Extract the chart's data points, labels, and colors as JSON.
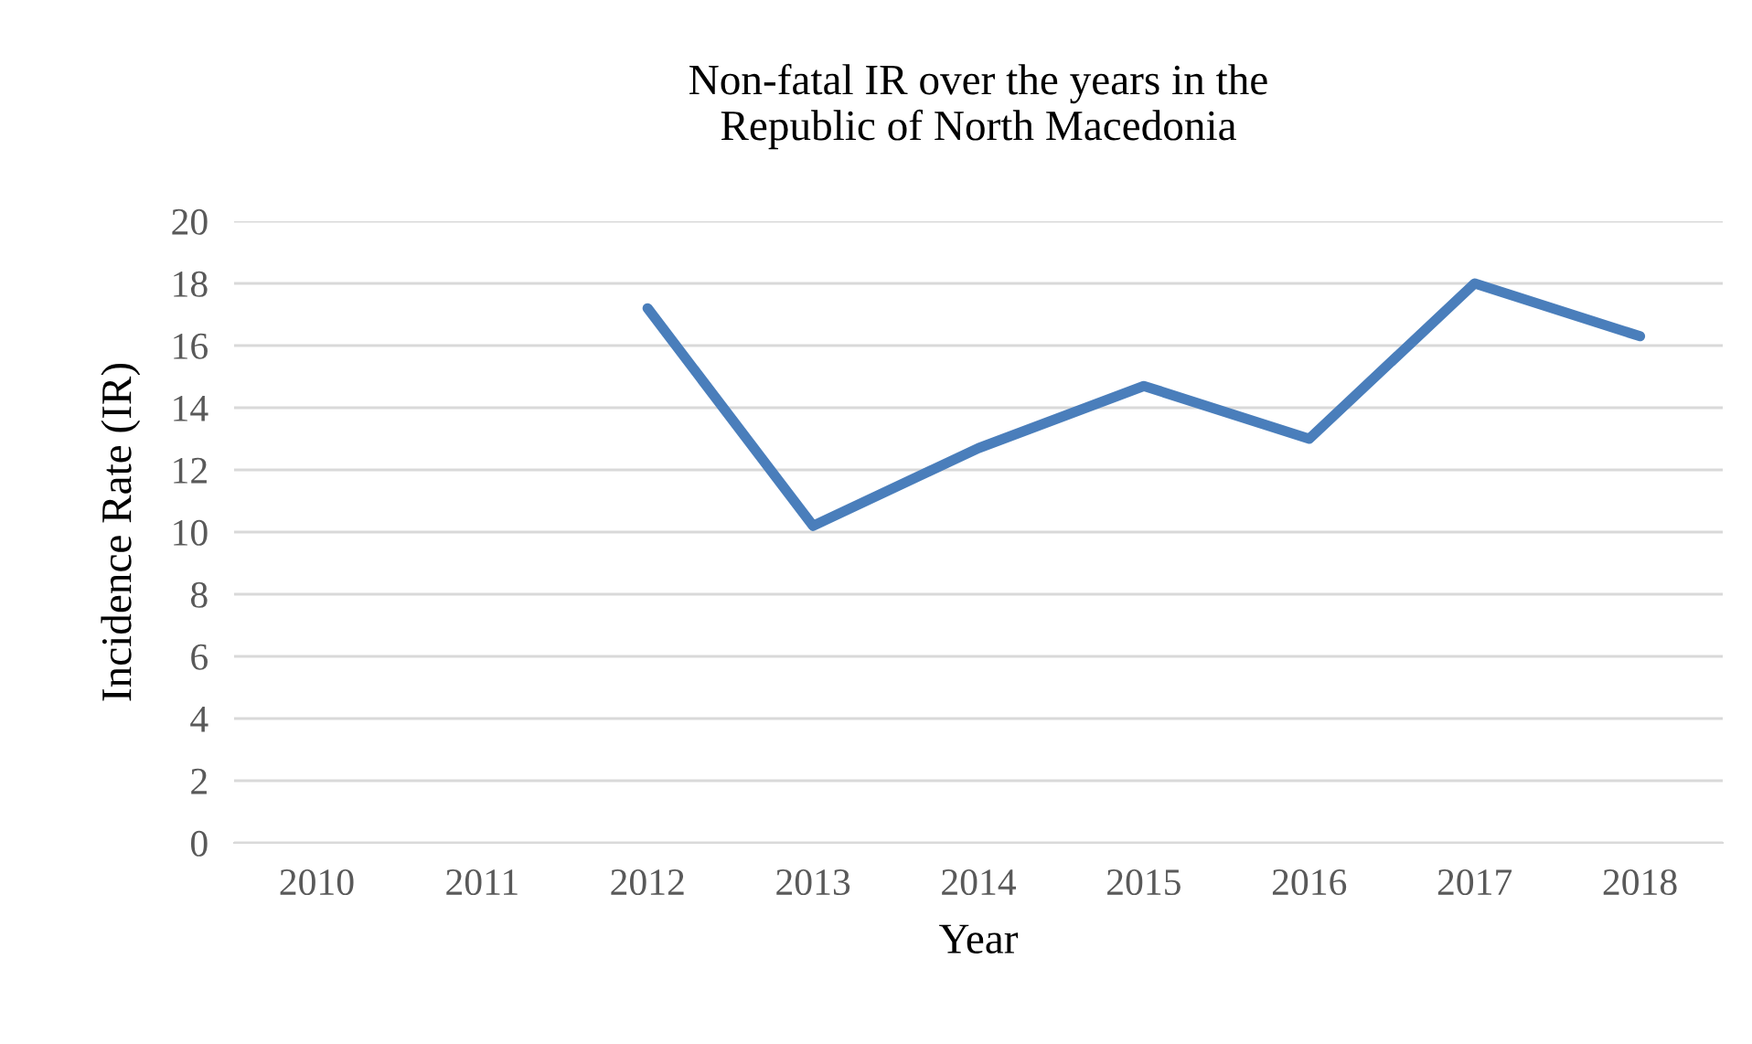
{
  "chart_data": {
    "type": "line",
    "title": "Non-fatal IR over the years in the\nRepublic of North Macedonia",
    "xlabel": "Year",
    "ylabel": "Incidence Rate (IR)",
    "categories": [
      "2010",
      "2011",
      "2012",
      "2013",
      "2014",
      "2015",
      "2016",
      "2017",
      "2018"
    ],
    "series": [
      {
        "color": "#4a7ebb",
        "values": [
          null,
          null,
          17.2,
          10.2,
          12.7,
          14.7,
          13.0,
          18.0,
          16.3
        ]
      }
    ],
    "ylim": [
      0,
      20
    ],
    "yticks": [
      0,
      2,
      4,
      6,
      8,
      10,
      12,
      14,
      16,
      18,
      20
    ],
    "grid": "y",
    "legend": false,
    "marker": "none",
    "line_style": "solid"
  }
}
